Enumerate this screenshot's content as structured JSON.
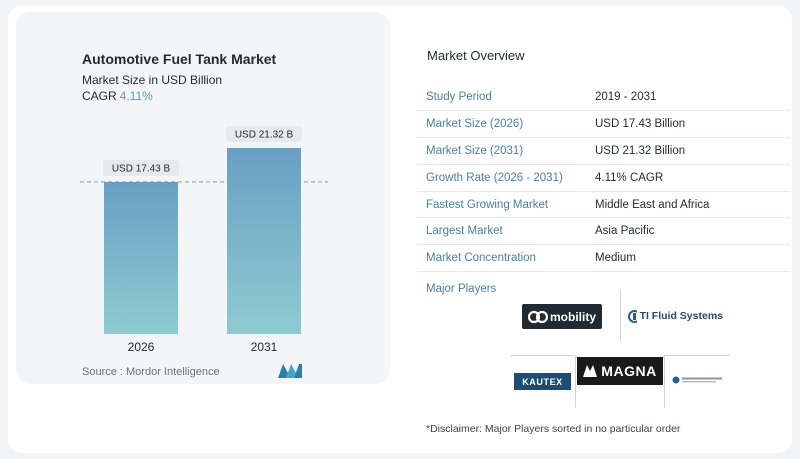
{
  "chart_data": {
    "type": "bar",
    "title": "Automotive Fuel Tank Market",
    "subtitle": "Market Size in USD Billion",
    "cagr_label": "CAGR",
    "cagr_value": "4.11%",
    "categories": [
      "2026",
      "2031"
    ],
    "values": [
      17.43,
      21.32
    ],
    "value_labels": [
      "USD 17.43 B",
      "USD 21.32 B"
    ],
    "ylim": [
      0,
      21.32
    ],
    "colors": {
      "bar_top": "#6a9fc4",
      "bar_bottom": "#8ecbd1",
      "dashed_line": "#7aa0b8"
    }
  },
  "source": "Source :  Mordor Intelligence",
  "overview": {
    "title": "Market Overview",
    "rows": [
      {
        "key": "Study Period",
        "value": "2019 - 2031"
      },
      {
        "key": "Market Size (2026)",
        "value": "USD 17.43 Billion"
      },
      {
        "key": "Market Size (2031)",
        "value": "USD 21.32 Billion"
      },
      {
        "key": "Growth Rate (2026 - 2031)",
        "value": "4.11% CAGR"
      },
      {
        "key": "Fastest Growing Market",
        "value": "Middle East and Africa"
      },
      {
        "key": "Largest Market",
        "value": "Asia Pacific"
      },
      {
        "key": "Market Concentration",
        "value": "Medium"
      }
    ]
  },
  "players": {
    "title": "Major Players",
    "logos": {
      "opmobility": "mobility",
      "ti": "TI Fluid Systems",
      "kautex": "KAUTEX",
      "magna": "MAGNA"
    }
  },
  "disclaimer": "*Disclaimer: Major Players sorted in no particular order"
}
